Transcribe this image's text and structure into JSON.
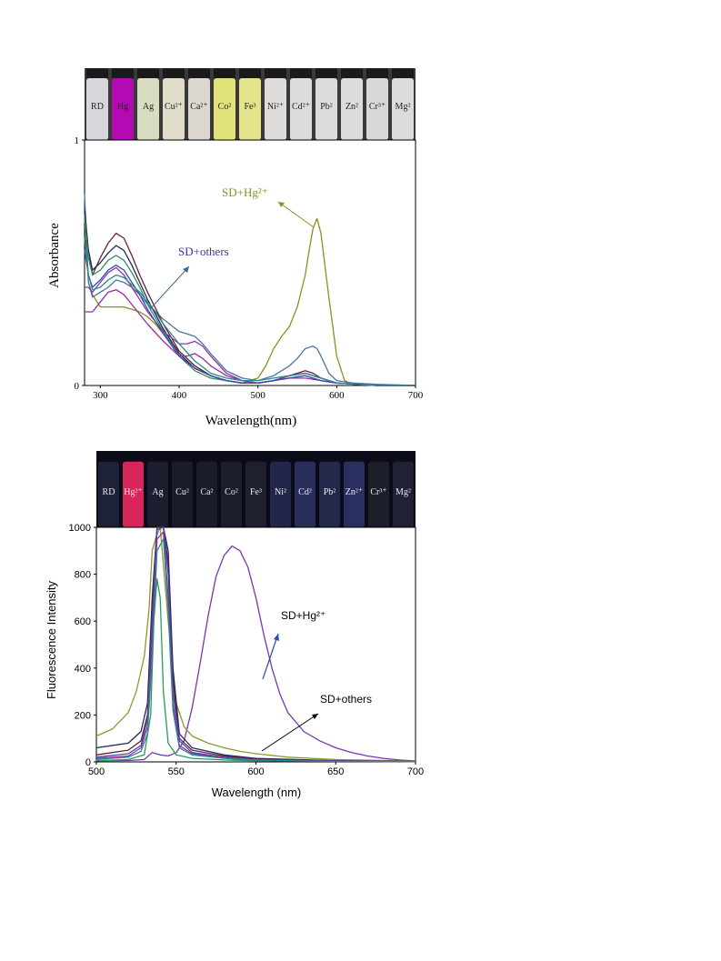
{
  "colors": {
    "sd_hg_abs": "#8a9020",
    "sd_hg_fl": "#7a35b0",
    "others_label_abs": "#3a36a0",
    "vial_strip_bg": "#3a3a3a",
    "uv_strip_bg": "#0a0a1a"
  },
  "vials_top": {
    "labels": [
      "RD",
      "Hg",
      "Ag",
      "Cu²⁺",
      "Ca²⁺",
      "Co²",
      "Fe³",
      "Ni²⁺",
      "Cd²⁺",
      "Pb²",
      "Zn²",
      "Cr³⁺",
      "Mg²"
    ],
    "fills": [
      "#d8d8dc",
      "#b40ab4",
      "#d8dcc0",
      "#e0dcc8",
      "#dcd8d0",
      "#e2e27a",
      "#e4e48c",
      "#e0dcdc",
      "#dcdcdc",
      "#dcdcdc",
      "#dcdcdc",
      "#d8d8d8",
      "#dcdcdc"
    ]
  },
  "vials_bottom": {
    "labels": [
      "RD",
      "Hg²⁺",
      "Ag",
      "Cu²",
      "Ca²",
      "Co²",
      "Fe³",
      "Ni²",
      "Cd²",
      "Pb²",
      "Zn²⁺",
      "Cr³⁺",
      "Mg²"
    ],
    "fills": [
      "#1e2236",
      "#d8265a",
      "#1c1e30",
      "#1a1c2a",
      "#1a1c2c",
      "#1c1e2c",
      "#1e2030",
      "#22264a",
      "#2a2e5a",
      "#24284a",
      "#2a2e60",
      "#1c1e2a",
      "#202234"
    ]
  },
  "chart_data": [
    {
      "type": "line",
      "title": "",
      "xlabel": "Wavelength(nm)",
      "ylabel": "Absorbance",
      "xlim": [
        280,
        700
      ],
      "ylim": [
        0,
        1
      ],
      "x_ticks": [
        300,
        400,
        500,
        600,
        700
      ],
      "y_ticks": [
        0,
        1
      ],
      "annotations": [
        "SD+Hg²⁺",
        "SD+others"
      ],
      "series": [
        {
          "color": "#8a9020",
          "x": [
            280,
            285,
            290,
            300,
            310,
            320,
            330,
            340,
            350,
            360,
            370,
            380,
            400,
            420,
            440,
            460,
            480,
            500,
            510,
            520,
            530,
            540,
            550,
            560,
            565,
            570,
            575,
            580,
            590,
            600,
            610,
            620,
            640,
            660,
            680,
            700
          ],
          "y": [
            0.7,
            0.42,
            0.37,
            0.32,
            0.32,
            0.32,
            0.32,
            0.31,
            0.3,
            0.28,
            0.25,
            0.21,
            0.14,
            0.08,
            0.04,
            0.02,
            0.01,
            0.03,
            0.08,
            0.15,
            0.2,
            0.24,
            0.32,
            0.45,
            0.55,
            0.64,
            0.68,
            0.62,
            0.36,
            0.12,
            0.02,
            0.005,
            0.003,
            0.002,
            0.002,
            0.0
          ]
        },
        {
          "color": "#4a76a0",
          "x": [
            280,
            285,
            290,
            300,
            310,
            320,
            330,
            340,
            350,
            360,
            370,
            380,
            400,
            410,
            420,
            430,
            440,
            460,
            480,
            500,
            520,
            540,
            550,
            560,
            570,
            575,
            580,
            590,
            600,
            620,
            650,
            700
          ],
          "y": [
            0.78,
            0.42,
            0.36,
            0.38,
            0.4,
            0.43,
            0.42,
            0.4,
            0.37,
            0.33,
            0.3,
            0.27,
            0.22,
            0.21,
            0.2,
            0.17,
            0.13,
            0.06,
            0.03,
            0.02,
            0.04,
            0.08,
            0.11,
            0.15,
            0.16,
            0.15,
            0.12,
            0.05,
            0.02,
            0.01,
            0.005,
            0.0
          ]
        },
        {
          "color": "#6a1e3a",
          "x": [
            280,
            285,
            290,
            300,
            310,
            320,
            330,
            340,
            350,
            360,
            380,
            400,
            420,
            440,
            460,
            480,
            500,
            520,
            540,
            560,
            570,
            580,
            600,
            650,
            700
          ],
          "y": [
            0.6,
            0.55,
            0.45,
            0.52,
            0.58,
            0.62,
            0.6,
            0.53,
            0.45,
            0.38,
            0.25,
            0.14,
            0.08,
            0.04,
            0.02,
            0.01,
            0.01,
            0.02,
            0.04,
            0.06,
            0.05,
            0.03,
            0.01,
            0.0,
            0.0
          ]
        },
        {
          "color": "#1e2a5a",
          "x": [
            280,
            285,
            290,
            300,
            310,
            320,
            330,
            340,
            350,
            360,
            380,
            400,
            420,
            440,
            460,
            480,
            500,
            520,
            540,
            560,
            570,
            580,
            600,
            650,
            700
          ],
          "y": [
            0.72,
            0.55,
            0.47,
            0.5,
            0.54,
            0.57,
            0.55,
            0.49,
            0.42,
            0.35,
            0.23,
            0.13,
            0.07,
            0.04,
            0.02,
            0.01,
            0.01,
            0.02,
            0.04,
            0.05,
            0.04,
            0.03,
            0.01,
            0.0,
            0.0
          ]
        },
        {
          "color": "#3c8a5a",
          "x": [
            280,
            285,
            290,
            300,
            310,
            320,
            330,
            340,
            350,
            360,
            380,
            400,
            420,
            440,
            460,
            480,
            500,
            520,
            540,
            560,
            580,
            600,
            650,
            700
          ],
          "y": [
            0.68,
            0.52,
            0.45,
            0.47,
            0.51,
            0.53,
            0.51,
            0.46,
            0.4,
            0.33,
            0.22,
            0.12,
            0.06,
            0.03,
            0.02,
            0.01,
            0.01,
            0.02,
            0.03,
            0.04,
            0.02,
            0.01,
            0.0,
            0.0
          ]
        },
        {
          "color": "#9a2aa0",
          "x": [
            280,
            285,
            290,
            300,
            310,
            320,
            330,
            340,
            350,
            360,
            380,
            400,
            410,
            420,
            430,
            440,
            460,
            480,
            500,
            520,
            540,
            560,
            580,
            600,
            650,
            700
          ],
          "y": [
            0.3,
            0.3,
            0.3,
            0.34,
            0.38,
            0.39,
            0.37,
            0.33,
            0.29,
            0.25,
            0.18,
            0.12,
            0.12,
            0.13,
            0.11,
            0.08,
            0.04,
            0.02,
            0.01,
            0.02,
            0.03,
            0.03,
            0.02,
            0.01,
            0.0,
            0.0
          ]
        },
        {
          "color": "#8a3aa0",
          "x": [
            280,
            285,
            290,
            300,
            310,
            320,
            330,
            340,
            350,
            360,
            380,
            400,
            410,
            420,
            430,
            440,
            460,
            480,
            500,
            520,
            540,
            560,
            580,
            600,
            650,
            700
          ],
          "y": [
            0.4,
            0.4,
            0.38,
            0.42,
            0.46,
            0.48,
            0.45,
            0.4,
            0.35,
            0.3,
            0.22,
            0.17,
            0.17,
            0.18,
            0.16,
            0.12,
            0.05,
            0.02,
            0.01,
            0.02,
            0.04,
            0.05,
            0.03,
            0.01,
            0.0,
            0.0
          ]
        },
        {
          "color": "#3a4ab0",
          "x": [
            280,
            285,
            290,
            300,
            310,
            320,
            330,
            340,
            350,
            360,
            380,
            400,
            420,
            440,
            460,
            480,
            500,
            520,
            540,
            560,
            580,
            600,
            650,
            700
          ],
          "y": [
            0.55,
            0.45,
            0.4,
            0.43,
            0.47,
            0.49,
            0.47,
            0.42,
            0.37,
            0.31,
            0.21,
            0.12,
            0.07,
            0.04,
            0.02,
            0.01,
            0.01,
            0.02,
            0.03,
            0.04,
            0.02,
            0.01,
            0.0,
            0.0
          ]
        },
        {
          "color": "#2a8a8a",
          "x": [
            280,
            285,
            290,
            300,
            310,
            320,
            330,
            340,
            350,
            360,
            370,
            380,
            400,
            420,
            440,
            460,
            480,
            500,
            520,
            540,
            560,
            580,
            600,
            650,
            700
          ],
          "y": [
            0.6,
            0.45,
            0.39,
            0.4,
            0.43,
            0.45,
            0.44,
            0.41,
            0.38,
            0.34,
            0.3,
            0.25,
            0.17,
            0.1,
            0.05,
            0.03,
            0.02,
            0.02,
            0.03,
            0.04,
            0.05,
            0.03,
            0.01,
            0.0,
            0.0
          ]
        }
      ]
    },
    {
      "type": "line",
      "title": "",
      "xlabel": "Wavelength (nm)",
      "ylabel": "Fluorescence Intensity",
      "xlim": [
        500,
        700
      ],
      "ylim": [
        0,
        1000
      ],
      "x_ticks": [
        500,
        550,
        600,
        650,
        700
      ],
      "y_ticks": [
        0,
        200,
        400,
        600,
        800,
        1000
      ],
      "annotations": [
        "SD+Hg²⁺",
        "SD+others"
      ],
      "series": [
        {
          "color": "#7a35b0",
          "x": [
            500,
            520,
            530,
            535,
            540,
            545,
            550,
            555,
            560,
            565,
            570,
            575,
            580,
            585,
            590,
            595,
            600,
            605,
            610,
            615,
            620,
            630,
            640,
            650,
            660,
            670,
            680,
            690,
            700
          ],
          "y": [
            5,
            6,
            10,
            40,
            30,
            25,
            40,
            90,
            230,
            420,
            620,
            790,
            880,
            920,
            900,
            830,
            700,
            540,
            400,
            290,
            210,
            130,
            90,
            60,
            40,
            25,
            15,
            8,
            4
          ]
        },
        {
          "color": "#8a9a30",
          "x": [
            500,
            510,
            520,
            525,
            530,
            533,
            535,
            537,
            540,
            545,
            550,
            555,
            560,
            570,
            580,
            590,
            600,
            620,
            650,
            700
          ],
          "y": [
            110,
            140,
            210,
            300,
            450,
            650,
            900,
            950,
            1000,
            600,
            250,
            150,
            110,
            80,
            60,
            45,
            35,
            20,
            10,
            4
          ]
        },
        {
          "color": "#2a9a5a",
          "x": [
            500,
            520,
            530,
            534,
            536,
            538,
            540,
            542,
            545,
            550,
            560,
            580,
            600,
            650,
            700
          ],
          "y": [
            5,
            10,
            30,
            200,
            600,
            780,
            700,
            300,
            80,
            30,
            15,
            8,
            5,
            3,
            2
          ]
        },
        {
          "color": "#1e2a5a",
          "x": [
            500,
            520,
            528,
            532,
            535,
            538,
            542,
            545,
            548,
            552,
            560,
            580,
            600,
            650,
            700
          ],
          "y": [
            60,
            80,
            130,
            250,
            700,
            1000,
            1000,
            900,
            400,
            120,
            60,
            30,
            15,
            5,
            2
          ]
        },
        {
          "color": "#6a1e3a",
          "x": [
            500,
            520,
            528,
            532,
            535,
            538,
            542,
            545,
            548,
            552,
            560,
            580,
            600,
            650,
            700
          ],
          "y": [
            30,
            50,
            90,
            200,
            650,
            1000,
            1000,
            850,
            350,
            100,
            50,
            25,
            12,
            4,
            2
          ]
        },
        {
          "color": "#3a4ab0",
          "x": [
            500,
            520,
            528,
            532,
            535,
            538,
            542,
            545,
            548,
            552,
            560,
            580,
            600,
            650,
            700
          ],
          "y": [
            20,
            35,
            70,
            180,
            600,
            990,
            1000,
            800,
            300,
            90,
            40,
            20,
            10,
            3,
            1
          ]
        },
        {
          "color": "#9a2aa0",
          "x": [
            500,
            520,
            528,
            532,
            535,
            538,
            542,
            545,
            548,
            552,
            560,
            580,
            600,
            650,
            700
          ],
          "y": [
            15,
            25,
            60,
            150,
            520,
            950,
            980,
            700,
            250,
            70,
            35,
            18,
            8,
            3,
            1
          ]
        },
        {
          "color": "#2a8a8a",
          "x": [
            500,
            520,
            528,
            532,
            535,
            538,
            542,
            545,
            548,
            552,
            560,
            580,
            600,
            650,
            700
          ],
          "y": [
            10,
            20,
            45,
            120,
            450,
            900,
            950,
            650,
            220,
            60,
            30,
            15,
            7,
            2,
            1
          ]
        }
      ]
    }
  ]
}
